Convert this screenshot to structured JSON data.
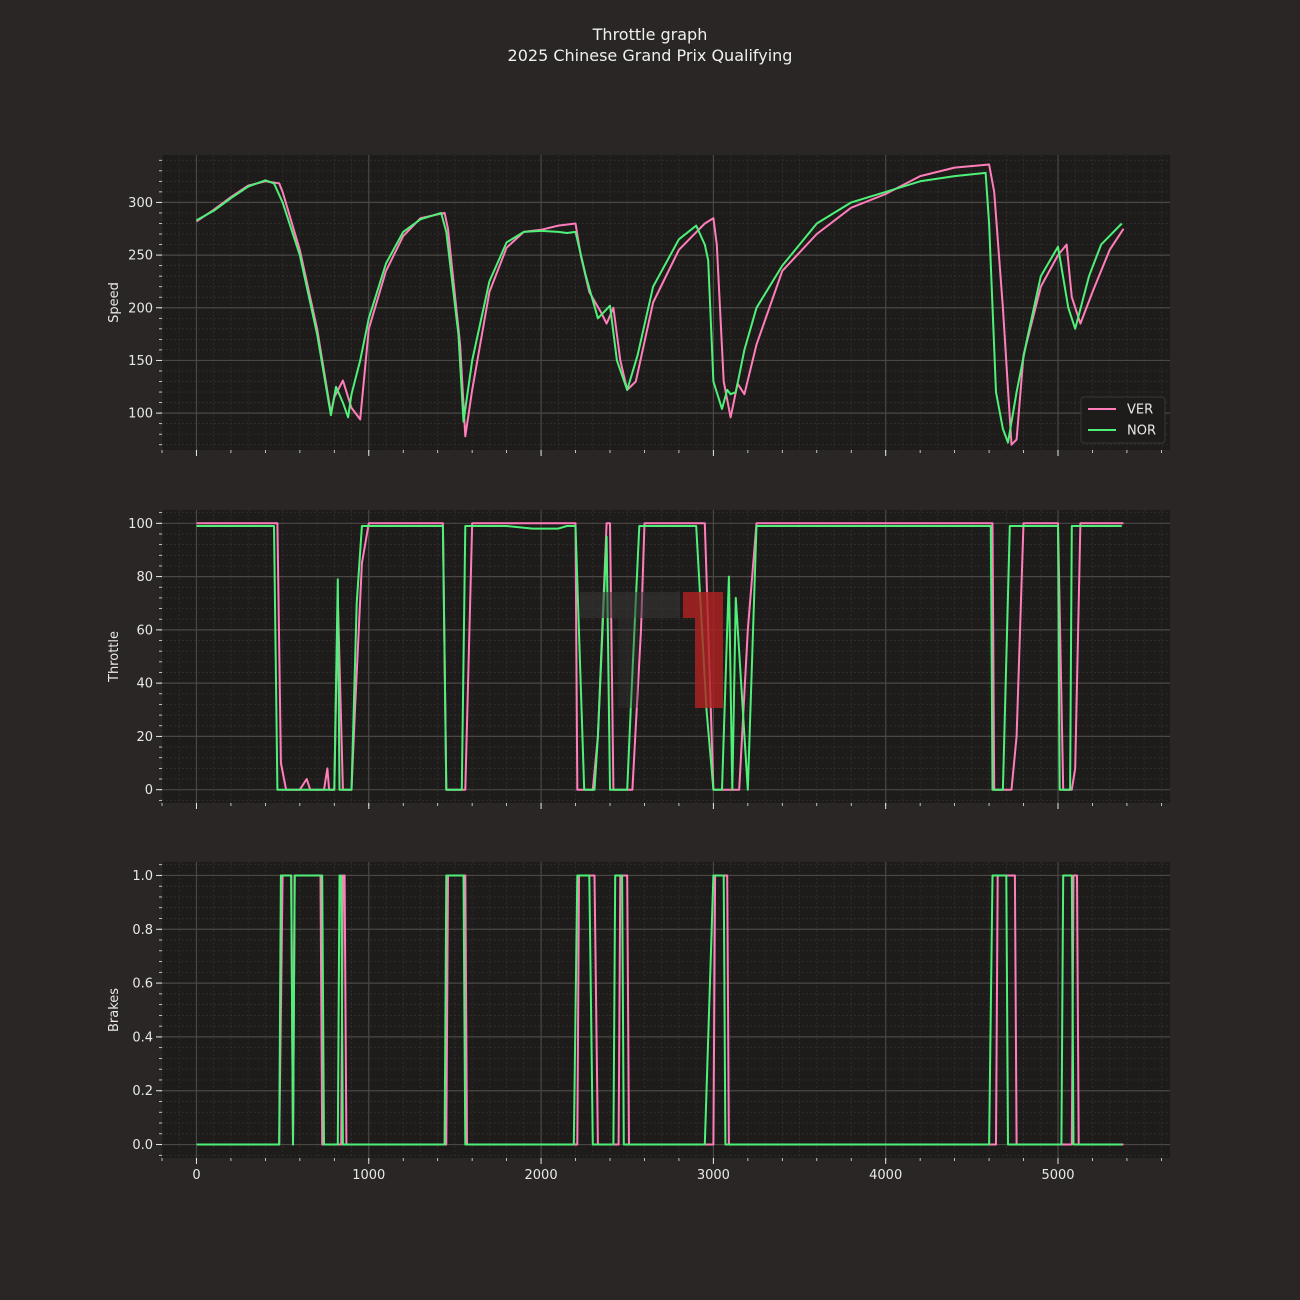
{
  "title_line1": "Throttle graph",
  "title_line2": "2025 Chinese Grand Prix Qualifying",
  "colors": {
    "background": "#292625",
    "axes_bg": "#1e1c1b",
    "grid_major": "#4a4745",
    "grid_minor": "#343130",
    "text": "#e8e8e8",
    "VER": "#ff7eb9",
    "NOR": "#4ff078",
    "occlusion": "#b22222"
  },
  "chart_data": [
    {
      "type": "line",
      "ylabel": "Speed",
      "xlabel": "",
      "xlim": [
        -200,
        5650
      ],
      "ylim": [
        65,
        345
      ],
      "xticks": [
        0,
        1000,
        2000,
        3000,
        4000,
        5000
      ],
      "yticks": [
        100,
        150,
        200,
        250,
        300
      ],
      "legend": {
        "position": "bottom-right",
        "entries": [
          "VER",
          "NOR"
        ]
      },
      "show_xtick_labels": false,
      "series": [
        {
          "name": "VER",
          "x": [
            0,
            100,
            200,
            300,
            400,
            480,
            500,
            600,
            700,
            780,
            800,
            850,
            900,
            950,
            1000,
            1100,
            1200,
            1300,
            1440,
            1460,
            1530,
            1560,
            1600,
            1700,
            1800,
            1900,
            2000,
            2100,
            2200,
            2230,
            2280,
            2350,
            2380,
            2420,
            2460,
            2500,
            2550,
            2650,
            2800,
            2950,
            3000,
            3020,
            3060,
            3100,
            3120,
            3140,
            3180,
            3250,
            3400,
            3600,
            3800,
            4000,
            4200,
            4400,
            4600,
            4630,
            4680,
            4730,
            4760,
            4800,
            4900,
            5000,
            5050,
            5080,
            5130,
            5200,
            5300,
            5380
          ],
          "y": [
            282,
            293,
            305,
            316,
            320,
            318,
            310,
            255,
            180,
            100,
            115,
            131,
            105,
            94,
            180,
            235,
            268,
            285,
            290,
            275,
            165,
            78,
            122,
            215,
            257,
            272,
            274,
            278,
            280,
            250,
            215,
            195,
            185,
            200,
            150,
            122,
            130,
            205,
            255,
            280,
            285,
            260,
            130,
            96,
            112,
            128,
            118,
            165,
            235,
            270,
            295,
            308,
            325,
            333,
            336,
            310,
            200,
            70,
            75,
            155,
            220,
            250,
            260,
            210,
            185,
            215,
            255,
            275
          ]
        },
        {
          "name": "NOR",
          "x": [
            0,
            100,
            200,
            300,
            400,
            450,
            500,
            600,
            700,
            780,
            810,
            850,
            880,
            900,
            950,
            1000,
            1100,
            1200,
            1300,
            1420,
            1450,
            1520,
            1550,
            1600,
            1700,
            1800,
            1900,
            2000,
            2100,
            2150,
            2200,
            2260,
            2330,
            2400,
            2440,
            2500,
            2560,
            2650,
            2800,
            2900,
            2950,
            2970,
            3000,
            3050,
            3080,
            3100,
            3130,
            3180,
            3250,
            3400,
            3600,
            3800,
            4000,
            4200,
            4400,
            4580,
            4600,
            4640,
            4680,
            4710,
            4760,
            4820,
            4900,
            5000,
            5060,
            5100,
            5180,
            5250,
            5370
          ],
          "y": [
            283,
            292,
            304,
            315,
            321,
            318,
            300,
            250,
            175,
            98,
            125,
            110,
            96,
            118,
            150,
            190,
            242,
            272,
            284,
            290,
            272,
            175,
            92,
            150,
            225,
            262,
            272,
            273,
            272,
            271,
            272,
            230,
            190,
            202,
            150,
            122,
            155,
            220,
            265,
            278,
            260,
            245,
            130,
            104,
            122,
            118,
            120,
            160,
            200,
            240,
            280,
            300,
            310,
            320,
            325,
            328,
            280,
            120,
            85,
            72,
            120,
            170,
            230,
            258,
            200,
            180,
            230,
            260,
            280
          ]
        }
      ]
    },
    {
      "type": "line",
      "ylabel": "Throttle",
      "xlabel": "",
      "xlim": [
        -200,
        5650
      ],
      "ylim": [
        -5,
        105
      ],
      "xticks": [
        0,
        1000,
        2000,
        3000,
        4000,
        5000
      ],
      "yticks": [
        0,
        20,
        40,
        60,
        80,
        100
      ],
      "show_xtick_labels": false,
      "series": [
        {
          "name": "VER",
          "x": [
            0,
            470,
            490,
            520,
            600,
            640,
            660,
            700,
            740,
            760,
            770,
            800,
            820,
            850,
            880,
            900,
            920,
            960,
            1000,
            1430,
            1450,
            1550,
            1560,
            1600,
            1800,
            2000,
            2200,
            2210,
            2300,
            2330,
            2380,
            2400,
            2420,
            2500,
            2530,
            2580,
            2600,
            2650,
            2950,
            3000,
            3050,
            3080,
            3130,
            3150,
            3200,
            3250,
            3500,
            4000,
            4500,
            4620,
            4630,
            4730,
            4760,
            4800,
            5000,
            5030,
            5080,
            5100,
            5130,
            5380
          ],
          "y": [
            100,
            100,
            10,
            0,
            0,
            4,
            0,
            0,
            0,
            8,
            0,
            0,
            72,
            0,
            0,
            0,
            30,
            85,
            100,
            100,
            0,
            0,
            0,
            100,
            100,
            100,
            100,
            0,
            0,
            20,
            100,
            100,
            0,
            0,
            0,
            60,
            100,
            100,
            100,
            0,
            0,
            0,
            0,
            0,
            60,
            100,
            100,
            100,
            100,
            100,
            0,
            0,
            20,
            100,
            100,
            0,
            0,
            8,
            100,
            100
          ]
        },
        {
          "name": "NOR",
          "x": [
            0,
            450,
            470,
            510,
            600,
            700,
            780,
            800,
            820,
            830,
            850,
            900,
            930,
            960,
            1000,
            1430,
            1450,
            1540,
            1560,
            1600,
            1800,
            1950,
            2100,
            2150,
            2200,
            2250,
            2310,
            2330,
            2380,
            2400,
            2420,
            2500,
            2520,
            2570,
            2600,
            2900,
            2960,
            3000,
            3050,
            3090,
            3110,
            3130,
            3200,
            3250,
            3400,
            3600,
            3800,
            4000,
            4200,
            4500,
            4610,
            4620,
            4680,
            4720,
            4760,
            4780,
            5000,
            5010,
            5070,
            5080,
            5120,
            5370
          ],
          "y": [
            99,
            99,
            0,
            0,
            0,
            0,
            0,
            0,
            79,
            0,
            0,
            0,
            70,
            99,
            99,
            99,
            0,
            0,
            99,
            99,
            99,
            98,
            98,
            99,
            99,
            0,
            0,
            20,
            95,
            0,
            0,
            0,
            30,
            99,
            99,
            99,
            30,
            0,
            0,
            80,
            0,
            72,
            0,
            99,
            99,
            99,
            99,
            99,
            99,
            99,
            99,
            0,
            0,
            99,
            99,
            99,
            99,
            0,
            0,
            99,
            99,
            99
          ]
        }
      ]
    },
    {
      "type": "line",
      "ylabel": "Brakes",
      "xlabel": "",
      "xlim": [
        -200,
        5650
      ],
      "ylim": [
        -0.05,
        1.05
      ],
      "xticks": [
        0,
        1000,
        2000,
        3000,
        4000,
        5000
      ],
      "yticks": [
        0.0,
        0.2,
        0.4,
        0.6,
        0.8,
        1.0
      ],
      "xtick_labels": [
        "0",
        "1000",
        "2000",
        "3000",
        "4000",
        "5000"
      ],
      "ytick_labels": [
        "0.0",
        "0.2",
        "0.4",
        "0.6",
        "0.8",
        "1.0"
      ],
      "show_xtick_labels": true,
      "series": [
        {
          "name": "VER",
          "x": [
            0,
            480,
            500,
            550,
            560,
            570,
            720,
            730,
            840,
            850,
            860,
            870,
            1450,
            1460,
            1560,
            1570,
            2210,
            2220,
            2310,
            2330,
            2450,
            2460,
            2500,
            2510,
            3000,
            3010,
            3080,
            3090,
            4640,
            4650,
            4750,
            4760,
            5080,
            5090,
            5110,
            5120,
            5380
          ],
          "y": [
            0,
            0,
            1,
            1,
            0,
            1,
            1,
            0,
            0,
            1,
            1,
            0,
            0,
            1,
            1,
            0,
            0,
            1,
            1,
            0,
            0,
            1,
            1,
            0,
            0,
            1,
            1,
            0,
            0,
            1,
            1,
            0,
            0,
            1,
            1,
            0,
            0
          ]
        },
        {
          "name": "NOR",
          "x": [
            0,
            480,
            490,
            550,
            560,
            570,
            730,
            740,
            820,
            830,
            840,
            850,
            1440,
            1450,
            1550,
            1560,
            2190,
            2210,
            2280,
            2300,
            2420,
            2430,
            2470,
            2480,
            2950,
            3000,
            3060,
            3070,
            4600,
            4620,
            4700,
            4710,
            5020,
            5030,
            5080,
            5090,
            5370
          ],
          "y": [
            0,
            0,
            1,
            1,
            0,
            1,
            1,
            0,
            0,
            1,
            1,
            0,
            0,
            1,
            1,
            0,
            0,
            1,
            1,
            0,
            0,
            1,
            1,
            0,
            0,
            1,
            1,
            0,
            0,
            1,
            1,
            0,
            0,
            1,
            1,
            0,
            0
          ]
        }
      ]
    }
  ]
}
